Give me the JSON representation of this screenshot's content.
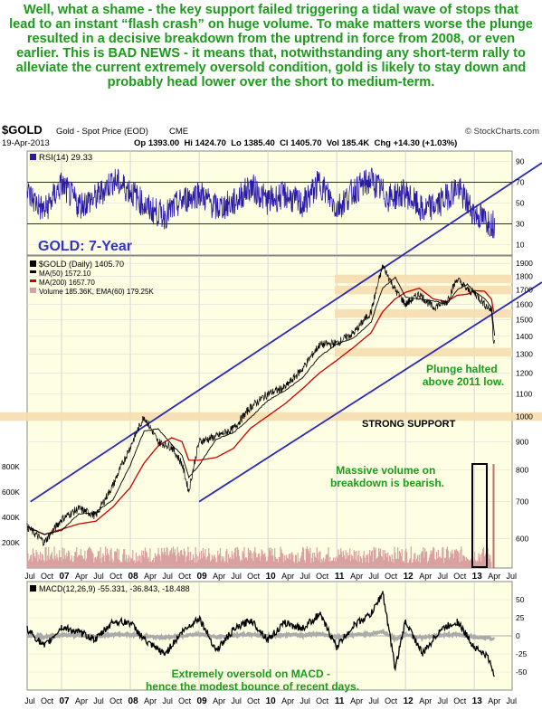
{
  "commentary": "Well, what a shame - the key support failed triggering a tidal wave of stops that lead to an instant “flash crash” on huge volume. To make matters worse the plunge resulted in a decisive breakdown from the uptrend in force from 2008, or even earlier. This is BAD NEWS - it means that, notwithstanding any short-term rally to alleviate the current extremely oversold condition, gold is likely to stay down and probably head lower over the short to medium-term.",
  "header": {
    "symbol": "$GOLD",
    "description": "Gold - Spot Price (EOD)",
    "exchange": "CME",
    "date": "19-Apr-2013",
    "source": "© StockCharts.com",
    "ohlc": "Op 1393.00  Hi 1424.70  Lo 1385.40  Cl 1405.70  Vol 185.4K  Chg +14.30 (+1.03%)"
  },
  "panels": {
    "rsi_legend": "RSI(14) 29.33",
    "price_legend": "$GOLD (Daily) 1405.70",
    "ma50_legend": "MA(50) 1572.10",
    "ma200_legend": "MA(200) 1657.70",
    "volume_legend": "Volume 185.36K, EMA(60) 179.25K",
    "macd_legend": "MACD(12,26,9) -55.331, -36.843, -18.488"
  },
  "annotations": {
    "chart_title": "GOLD: 7-Year",
    "plunge": "Plunge halted above 2011 low.",
    "strong_support": "STRONG SUPPORT",
    "volume": "Massive volume on breakdown is bearish.",
    "macd": "Extremely oversold on MACD - hence the modest bounce of recent days."
  },
  "colors": {
    "caption": "#1c9b1c",
    "annotation": "#1c9b1c",
    "title": "#3333cc",
    "background": "#fefee2",
    "price": "#000000",
    "ma50": "#000000",
    "ma200": "#cc0000",
    "volume": "#d8a0a0",
    "trendline": "#2a2ab8",
    "support_band": "#f5ddb0",
    "rsi": "#2a1aa8",
    "macd": "#000000",
    "macd_signal": "#aaaaaa"
  },
  "chart_data": {
    "type": "line",
    "x_axis_labels": [
      "Jul",
      "Oct",
      "07",
      "Apr",
      "Jul",
      "Oct",
      "08",
      "Apr",
      "Jul",
      "Oct",
      "09",
      "Apr",
      "Jul",
      "Oct",
      "10",
      "Apr",
      "Jul",
      "Oct",
      "11",
      "Apr",
      "Jul",
      "Oct",
      "12",
      "Apr",
      "Jul",
      "Oct",
      "13",
      "Apr",
      "Jul"
    ],
    "x_axis_years": [
      "07",
      "08",
      "09",
      "10",
      "11",
      "12",
      "13"
    ],
    "x_range": [
      "2006-06",
      "2013-07"
    ],
    "rsi": {
      "name": "RSI(14)",
      "ticks": [
        10,
        30,
        50,
        70,
        90
      ],
      "levels": [
        30,
        70
      ],
      "last": 29.33,
      "x": [
        2006.5,
        2006.75,
        2007.0,
        2007.25,
        2007.5,
        2007.75,
        2008.0,
        2008.25,
        2008.5,
        2008.75,
        2009.0,
        2009.25,
        2009.5,
        2009.75,
        2010.0,
        2010.25,
        2010.5,
        2010.75,
        2011.0,
        2011.25,
        2011.5,
        2011.75,
        2012.0,
        2012.25,
        2012.5,
        2012.75,
        2013.0,
        2013.2,
        2013.3
      ],
      "values": [
        60,
        42,
        68,
        48,
        55,
        72,
        62,
        45,
        38,
        52,
        60,
        45,
        50,
        66,
        52,
        58,
        48,
        70,
        45,
        62,
        72,
        55,
        60,
        42,
        50,
        65,
        40,
        32,
        29.33
      ]
    },
    "price": {
      "name": "$GOLD (Daily)",
      "log_scale": true,
      "y_ticks": [
        600,
        700,
        800,
        900,
        1000,
        1100,
        1200,
        1300,
        1400,
        1500,
        1600,
        1700,
        1800,
        1900
      ],
      "ylim": [
        530,
        1960
      ],
      "x": [
        2006.5,
        2006.75,
        2007.0,
        2007.25,
        2007.5,
        2007.75,
        2008.0,
        2008.2,
        2008.4,
        2008.6,
        2008.75,
        2008.85,
        2009.0,
        2009.25,
        2009.5,
        2009.75,
        2010.0,
        2010.25,
        2010.5,
        2010.75,
        2011.0,
        2011.25,
        2011.5,
        2011.67,
        2011.85,
        2012.0,
        2012.2,
        2012.4,
        2012.6,
        2012.75,
        2012.9,
        2013.0,
        2013.15,
        2013.25,
        2013.28,
        2013.3
      ],
      "close": [
        630,
        590,
        650,
        680,
        660,
        750,
        880,
        1000,
        900,
        880,
        820,
        730,
        900,
        920,
        950,
        1040,
        1100,
        1130,
        1220,
        1350,
        1360,
        1420,
        1550,
        1880,
        1700,
        1600,
        1670,
        1580,
        1620,
        1780,
        1700,
        1680,
        1600,
        1560,
        1360,
        1405.7
      ],
      "ma50_last": 1572.1,
      "ma200_last": 1657.7,
      "support_levels": [
        1000,
        1310,
        1540,
        1700,
        1780
      ],
      "trend_channel": "parallel uptrend lines from 2008"
    },
    "volume": {
      "name": "Volume",
      "ticks": [
        "200K",
        "400K",
        "600K",
        "800K"
      ],
      "last": "185.36K",
      "ema60": "179.25K",
      "spike_x": 2013.28,
      "spike_value": 820000
    },
    "macd": {
      "name": "MACD(12,26,9)",
      "ticks": [
        -50,
        -25,
        0,
        25,
        50
      ],
      "x": [
        2006.5,
        2006.75,
        2007.0,
        2007.25,
        2007.5,
        2007.75,
        2008.0,
        2008.25,
        2008.5,
        2008.75,
        2009.0,
        2009.25,
        2009.5,
        2009.75,
        2010.0,
        2010.25,
        2010.5,
        2010.75,
        2011.0,
        2011.25,
        2011.5,
        2011.67,
        2011.85,
        2012.0,
        2012.25,
        2012.5,
        2012.75,
        2013.0,
        2013.2,
        2013.3
      ],
      "values": [
        10,
        -15,
        12,
        5,
        -5,
        20,
        18,
        -10,
        -25,
        5,
        25,
        -20,
        8,
        22,
        -5,
        18,
        10,
        30,
        -15,
        15,
        30,
        60,
        -45,
        20,
        -25,
        8,
        20,
        -15,
        -30,
        -55.331
      ],
      "signal_last": -36.843,
      "histogram_last": -18.488
    }
  }
}
